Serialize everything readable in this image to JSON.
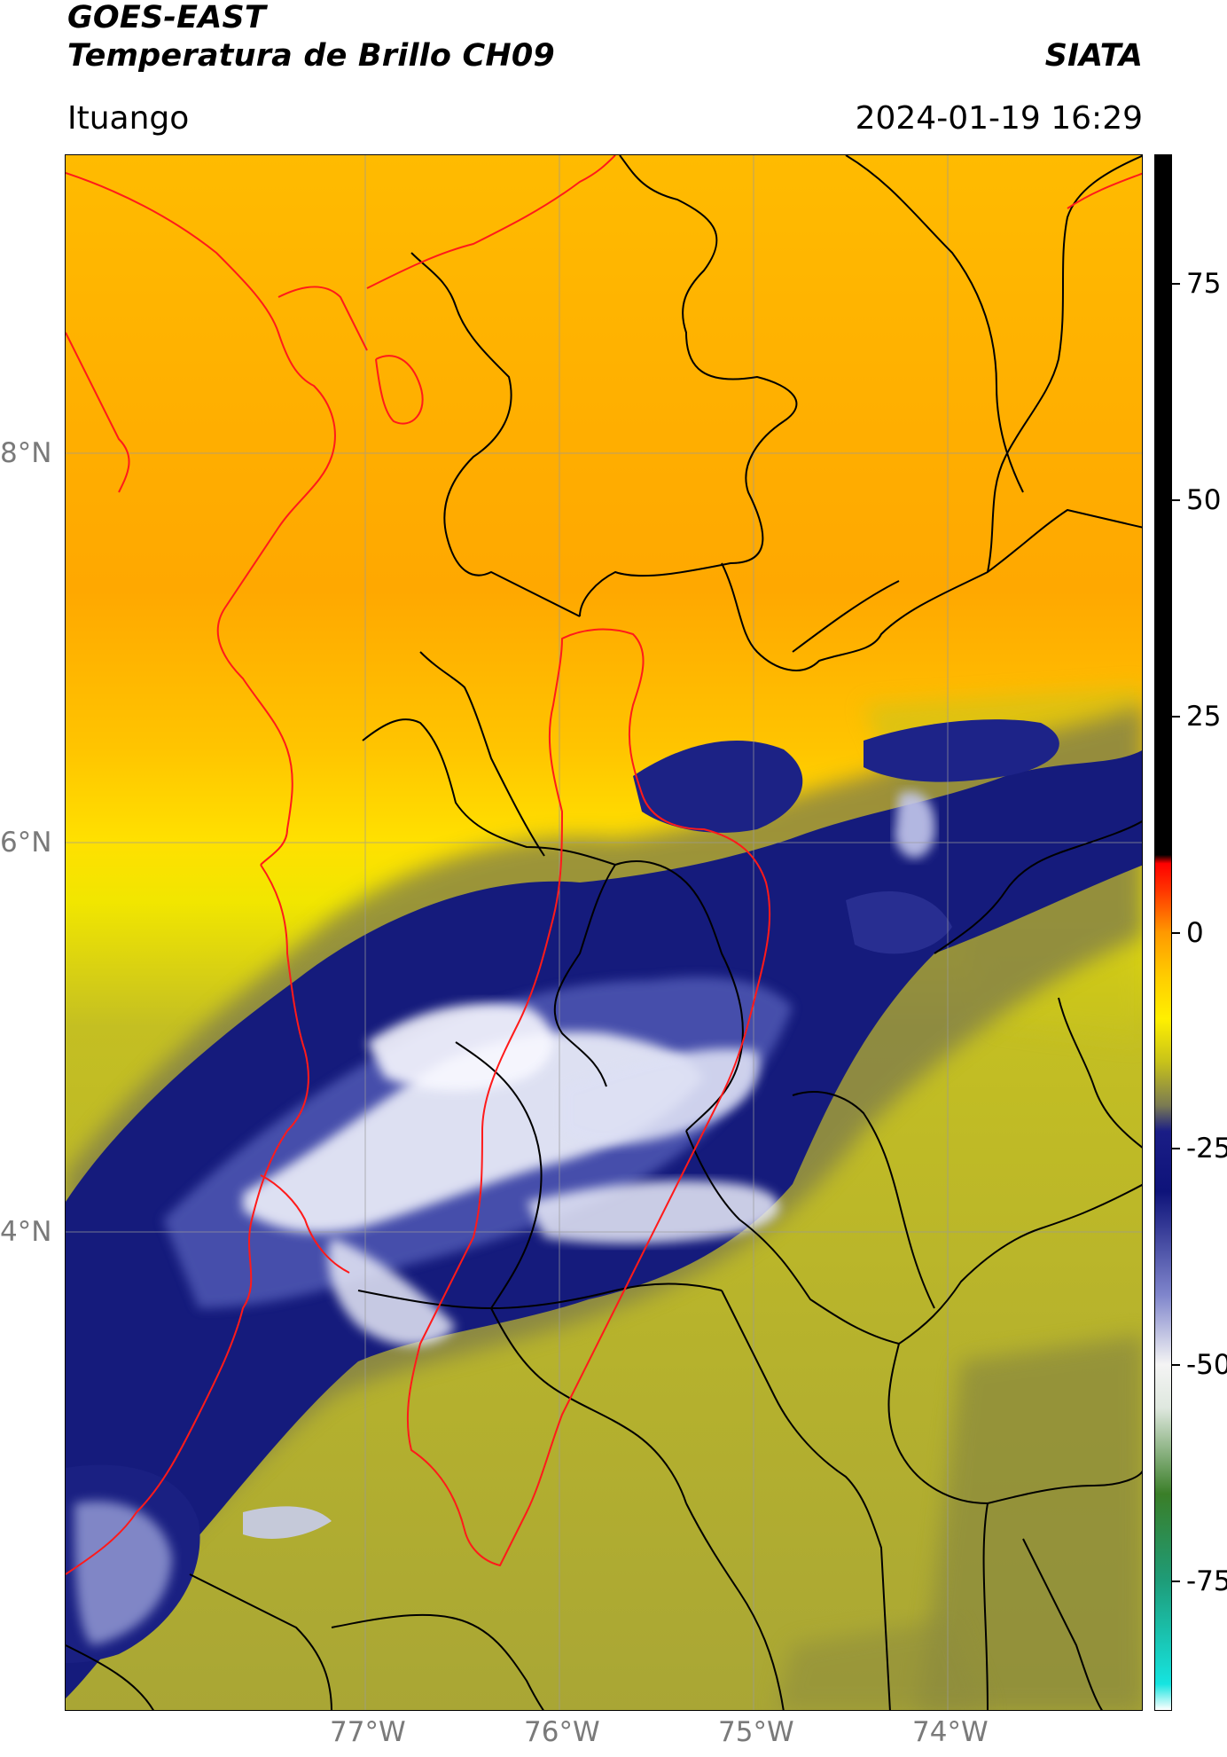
{
  "header": {
    "title_line1": "GOES-EAST",
    "title_line2": "Temperatura de Brillo CH09",
    "brand": "SIATA",
    "region": "Ituango",
    "datetime": "2024-01-19 16:29"
  },
  "map": {
    "lat_labels": [
      "8°N",
      "6°N",
      "4°N"
    ],
    "lon_labels": [
      "77°W",
      "76°W",
      "75°W",
      "74°W"
    ],
    "colors": {
      "warm_orange": "#ffb300",
      "yellow": "#ffe100",
      "olive": "#b9b52a",
      "dark_olive": "#8d8d3a",
      "navy": "#141a78",
      "blue": "#3c46a8",
      "light_blue": "#aab0e4",
      "white": "#f5f5f5",
      "border_black": "#000000",
      "border_red": "#ff1a1a",
      "gridline": "#9a9a9a"
    }
  },
  "colorbar": {
    "tick_labels": [
      "75",
      "50",
      "25",
      "0",
      "-25",
      "-50",
      "-75"
    ],
    "stops": [
      {
        "value": -90,
        "color": "#ffffff"
      },
      {
        "value": -87,
        "color": "#16e4e0"
      },
      {
        "value": -75,
        "color": "#1e9c78"
      },
      {
        "value": -65,
        "color": "#3a7e28"
      },
      {
        "value": -55,
        "color": "#dfe8df"
      },
      {
        "value": -50,
        "color": "#f4f4f4"
      },
      {
        "value": -42,
        "color": "#8086cc"
      },
      {
        "value": -30,
        "color": "#0e137a"
      },
      {
        "value": -23,
        "color": "#1a1d86"
      },
      {
        "value": -20,
        "color": "#7b7b52"
      },
      {
        "value": -15,
        "color": "#c7c21a"
      },
      {
        "value": -10,
        "color": "#fff000"
      },
      {
        "value": -5,
        "color": "#ffcc00"
      },
      {
        "value": 0,
        "color": "#ff9900"
      },
      {
        "value": 5,
        "color": "#ff3300"
      },
      {
        "value": 8,
        "color": "#ff0000"
      },
      {
        "value": 9,
        "color": "#000000"
      },
      {
        "value": 90,
        "color": "#000000"
      }
    ]
  }
}
